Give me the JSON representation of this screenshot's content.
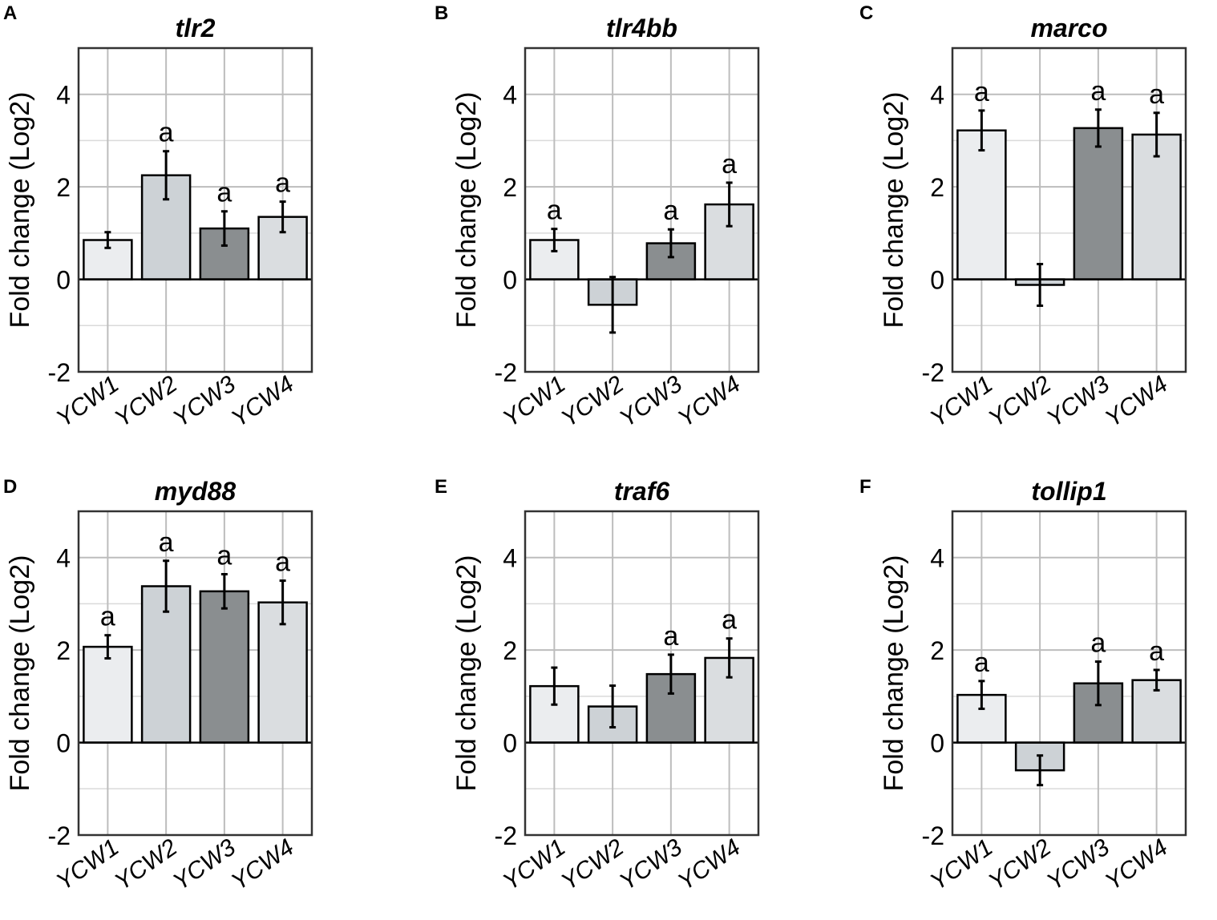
{
  "colors": {
    "YCW1": "#ebedef",
    "YCW2": "#cdd2d6",
    "YCW3": "#8a8e90",
    "YCW4": "#dadde0"
  },
  "chart_data": [
    {
      "panel": "A",
      "title": "tlr2",
      "type": "bar",
      "categories": [
        "YCW1",
        "YCW2",
        "YCW3",
        "YCW4"
      ],
      "values": [
        0.85,
        2.25,
        1.1,
        1.35
      ],
      "errors": [
        0.17,
        0.52,
        0.37,
        0.33
      ],
      "labels": [
        "",
        "a",
        "a",
        "a"
      ],
      "ylabel": "Fold change (Log2)",
      "ylim": [
        -2,
        5
      ],
      "yticks": [
        -2,
        0,
        2,
        4
      ],
      "grid": true
    },
    {
      "panel": "B",
      "title": "tlr4bb",
      "type": "bar",
      "categories": [
        "YCW1",
        "YCW2",
        "YCW3",
        "YCW4"
      ],
      "values": [
        0.85,
        -0.55,
        0.78,
        1.62
      ],
      "errors": [
        0.24,
        0.6,
        0.3,
        0.47
      ],
      "labels": [
        "a",
        "",
        "a",
        "a"
      ],
      "ylabel": "Fold change (Log2)",
      "ylim": [
        -2,
        5
      ],
      "yticks": [
        -2,
        0,
        2,
        4
      ],
      "grid": true
    },
    {
      "panel": "C",
      "title": "marco",
      "type": "bar",
      "categories": [
        "YCW1",
        "YCW2",
        "YCW3",
        "YCW4"
      ],
      "values": [
        3.22,
        -0.12,
        3.27,
        3.13
      ],
      "errors": [
        0.43,
        0.45,
        0.4,
        0.47
      ],
      "labels": [
        "a",
        "",
        "a",
        "a"
      ],
      "ylabel": "Fold change (Log2)",
      "ylim": [
        -2,
        5
      ],
      "yticks": [
        -2,
        0,
        2,
        4
      ],
      "grid": true
    },
    {
      "panel": "D",
      "title": "myd88",
      "type": "bar",
      "categories": [
        "YCW1",
        "YCW2",
        "YCW3",
        "YCW4"
      ],
      "values": [
        2.07,
        3.38,
        3.27,
        3.03
      ],
      "errors": [
        0.25,
        0.55,
        0.37,
        0.47
      ],
      "labels": [
        "a",
        "a",
        "a",
        "a"
      ],
      "ylabel": "Fold change (Log2)",
      "ylim": [
        -2,
        5
      ],
      "yticks": [
        -2,
        0,
        2,
        4
      ],
      "grid": true
    },
    {
      "panel": "E",
      "title": "traf6",
      "type": "bar",
      "categories": [
        "YCW1",
        "YCW2",
        "YCW3",
        "YCW4"
      ],
      "values": [
        1.22,
        0.78,
        1.48,
        1.83
      ],
      "errors": [
        0.4,
        0.45,
        0.42,
        0.42
      ],
      "labels": [
        "",
        "",
        "a",
        "a"
      ],
      "ylabel": "Fold change (Log2)",
      "ylim": [
        -2,
        5
      ],
      "yticks": [
        -2,
        0,
        2,
        4
      ],
      "grid": true
    },
    {
      "panel": "F",
      "title": "tollip1",
      "type": "bar",
      "categories": [
        "YCW1",
        "YCW2",
        "YCW3",
        "YCW4"
      ],
      "values": [
        1.03,
        -0.6,
        1.28,
        1.35
      ],
      "errors": [
        0.3,
        0.32,
        0.47,
        0.22
      ],
      "labels": [
        "a",
        "",
        "a",
        "a"
      ],
      "ylabel": "Fold change (Log2)",
      "ylim": [
        -2,
        5
      ],
      "yticks": [
        -2,
        0,
        2,
        4
      ],
      "grid": true
    }
  ]
}
